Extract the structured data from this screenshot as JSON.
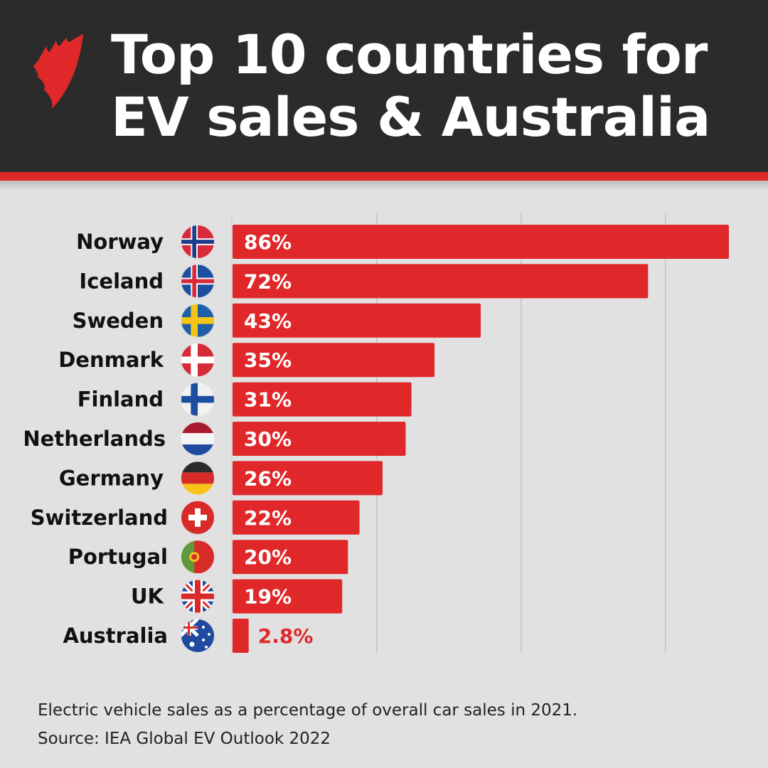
{
  "header": {
    "title_line1": "Top 10 countries for",
    "title_line2": "EV sales & Australia",
    "logo": "sbs-logo"
  },
  "chart_data": {
    "type": "bar",
    "orientation": "horizontal",
    "title": "Top 10 countries for EV sales & Australia",
    "categories": [
      "Norway",
      "Iceland",
      "Sweden",
      "Denmark",
      "Finland",
      "Netherlands",
      "Germany",
      "Switzerland",
      "Portugal",
      "UK",
      "Australia"
    ],
    "values": [
      86,
      72,
      43,
      35,
      31,
      30,
      26,
      22,
      20,
      19,
      2.8
    ],
    "value_labels": [
      "86%",
      "72%",
      "43%",
      "35%",
      "31%",
      "30%",
      "26%",
      "22%",
      "20%",
      "19%",
      "2.8%"
    ],
    "flags": [
      "flag-norway-icon",
      "flag-iceland-icon",
      "flag-sweden-icon",
      "flag-denmark-icon",
      "flag-finland-icon",
      "flag-netherlands-icon",
      "flag-germany-icon",
      "flag-switzerland-icon",
      "flag-portugal-icon",
      "flag-uk-icon",
      "flag-australia-icon"
    ],
    "xlim": [
      0,
      92
    ],
    "gridlines": [
      25,
      50,
      75
    ],
    "unit": "%",
    "bar_color": "#e0282a"
  },
  "footer": {
    "caption": "Electric vehicle sales as a percentage of overall car sales in 2021.",
    "source": "Source: IEA Global EV Outlook 2022"
  }
}
